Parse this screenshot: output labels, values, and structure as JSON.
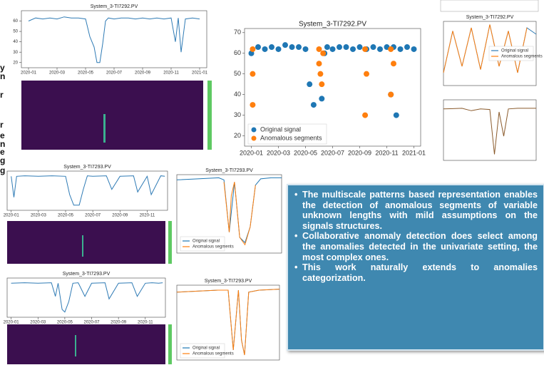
{
  "left_fragments": [
    "y",
    "n",
    "r",
    "r",
    "e",
    "n",
    "e",
    "g",
    "g"
  ],
  "bullets": [
    "The multiscale patterns based representation enables the detection of anomalous segments of variable unknown lengths with mild assumptions on the signals structures.",
    "Collaborative anomaly detection does select among the anomalies detected in the univariate setting, the most complex ones.",
    "This work naturally extends to anomalies categorization."
  ],
  "chart_data": [
    {
      "type": "line",
      "title": "System_3-TI7292.PV",
      "xlim": [
        -0.5,
        12.5
      ],
      "ylim": [
        15,
        70
      ],
      "xticks": [
        {
          "value": 0,
          "label": "2020-01"
        },
        {
          "value": 2,
          "label": "2020-03"
        },
        {
          "value": 4,
          "label": "2020-05"
        },
        {
          "value": 6,
          "label": "2020-07"
        },
        {
          "value": 8,
          "label": "2020-09"
        },
        {
          "value": 10,
          "label": "2020-11"
        },
        {
          "value": 12,
          "label": "2021-01"
        }
      ],
      "yticks": [
        20,
        30,
        40,
        50,
        60
      ],
      "series": [
        {
          "color": "#2f7bb5",
          "x": [
            0,
            0.5,
            1,
            1.5,
            2,
            2.5,
            3,
            3.5,
            4,
            4.3,
            4.6,
            4.8,
            5,
            5.2,
            5.4,
            5.6,
            6,
            6.5,
            7,
            7.5,
            8,
            8.5,
            9,
            9.5,
            10,
            10.3,
            10.5,
            10.7,
            11,
            11.5,
            12
          ],
          "values": [
            60,
            63,
            62,
            63,
            62,
            64,
            63,
            63,
            62,
            45,
            35,
            20,
            20,
            38,
            60,
            63,
            62,
            63,
            63,
            62,
            63,
            62,
            63,
            62,
            63,
            40,
            63,
            30,
            62,
            63,
            62
          ]
        }
      ]
    },
    {
      "type": "scatter",
      "title": "System_3-TI7292.PV",
      "xlim": [
        -0.5,
        12.5
      ],
      "ylim": [
        15,
        72
      ],
      "legend": "lower-left",
      "xticks": [
        {
          "value": 0,
          "label": "2020-01"
        },
        {
          "value": 2,
          "label": "2020-03"
        },
        {
          "value": 4,
          "label": "2020-05"
        },
        {
          "value": 6,
          "label": "2020-07"
        },
        {
          "value": 8,
          "label": "2020-09"
        },
        {
          "value": 10,
          "label": "2020-11"
        },
        {
          "value": 12,
          "label": "2021-01"
        }
      ],
      "yticks": [
        20,
        30,
        40,
        50,
        60,
        70
      ],
      "series": [
        {
          "name": "Original signal",
          "color": "#1f77b4",
          "x": [
            0,
            0.5,
            1,
            1.5,
            2,
            2.5,
            3,
            3.5,
            4,
            4.3,
            4.6,
            4.8,
            5,
            5.2,
            5.4,
            5.6,
            6,
            6.5,
            7,
            7.5,
            8,
            8.5,
            9,
            9.5,
            10,
            10.3,
            10.5,
            10.7,
            11,
            11.5,
            12
          ],
          "values": [
            60,
            63,
            62,
            63,
            62,
            64,
            63,
            63,
            62,
            45,
            35,
            20,
            20,
            38,
            60,
            63,
            62,
            63,
            63,
            62,
            63,
            62,
            63,
            62,
            63,
            40,
            63,
            30,
            62,
            63,
            62
          ]
        },
        {
          "name": "Anomalous segments",
          "color": "#ff7f0e",
          "x": [
            0.1,
            0.1,
            0.1,
            5,
            5,
            5.1,
            5.2,
            5.3,
            8.4,
            8.4,
            8.5,
            10.3,
            10.3,
            10.5
          ],
          "values": [
            35,
            50,
            62,
            62,
            55,
            50,
            45,
            60,
            62,
            30,
            50,
            40,
            62,
            55
          ]
        }
      ]
    },
    {
      "type": "line",
      "title": "System_3-TI7293.PV",
      "xlim": [
        -0.3,
        11.5
      ],
      "ylim": [
        20,
        95
      ],
      "xticks": [
        {
          "value": 0,
          "label": "2020-01"
        },
        {
          "value": 2,
          "label": "2020-03"
        },
        {
          "value": 4,
          "label": "2020-05"
        },
        {
          "value": 6,
          "label": "2020-07"
        },
        {
          "value": 8,
          "label": "2020-09"
        },
        {
          "value": 10,
          "label": "2020-11"
        }
      ],
      "series": [
        {
          "color": "#2f7bb5",
          "x": [
            0,
            0.2,
            0.4,
            1,
            2,
            3,
            4,
            4.3,
            4.6,
            5,
            5.3,
            5.6,
            6,
            7,
            7.4,
            8,
            9,
            9.3,
            10,
            10.3,
            11,
            11.3
          ],
          "values": [
            85,
            45,
            85,
            86,
            85,
            86,
            85,
            50,
            30,
            30,
            60,
            86,
            85,
            86,
            60,
            85,
            86,
            55,
            85,
            50,
            86,
            85
          ]
        }
      ]
    },
    {
      "type": "line",
      "title": "System_3-TI7293.PV",
      "xlim": [
        0,
        10
      ],
      "ylim": [
        20,
        95
      ],
      "legend": "lower-left",
      "series": [
        {
          "name": "Original signal",
          "color": "#1f77b4",
          "x": [
            0,
            2,
            4,
            4.5,
            5,
            5.5,
            6,
            6.5,
            7,
            7.5,
            8,
            9,
            10
          ],
          "values": [
            90,
            91,
            92,
            90,
            40,
            88,
            35,
            30,
            45,
            85,
            91,
            92,
            92
          ]
        },
        {
          "name": "Anomalous segments",
          "color": "#ff7f0e",
          "x": [
            4.5,
            5,
            5.2,
            5.5,
            6,
            6.5,
            7,
            7.5
          ],
          "values": [
            88,
            40,
            75,
            88,
            35,
            28,
            45,
            85
          ]
        }
      ]
    },
    {
      "type": "line",
      "title": "System_3-TI7293.PV",
      "xlim": [
        -0.3,
        11.5
      ],
      "ylim": [
        20,
        95
      ],
      "xticks": [
        {
          "value": 0,
          "label": "2020-01"
        },
        {
          "value": 2,
          "label": "2020-03"
        },
        {
          "value": 4,
          "label": "2020-05"
        },
        {
          "value": 6,
          "label": "2020-07"
        },
        {
          "value": 8,
          "label": "2020-09"
        },
        {
          "value": 10,
          "label": "2020-11"
        }
      ],
      "series": [
        {
          "color": "#2f7bb5",
          "x": [
            0,
            1,
            2,
            3,
            3.3,
            3.5,
            3.8,
            4,
            4.3,
            4.6,
            5,
            5.5,
            6,
            7,
            7.3,
            8,
            9,
            9.4,
            10,
            10.5,
            11,
            11.3
          ],
          "values": [
            85,
            86,
            85,
            86,
            60,
            85,
            35,
            30,
            50,
            85,
            86,
            60,
            85,
            86,
            55,
            85,
            86,
            60,
            85,
            86,
            85,
            86
          ]
        }
      ]
    },
    {
      "type": "line",
      "title": "System_3-TI7293.PV",
      "xlim": [
        0,
        10
      ],
      "ylim": [
        20,
        95
      ],
      "legend": "lower-left",
      "series": [
        {
          "name": "Original signal",
          "color": "#1f77b4",
          "x": [
            0,
            2,
            4,
            5,
            5.5,
            6,
            6.3,
            6.6,
            7,
            8,
            10
          ],
          "values": [
            88,
            89,
            90,
            90,
            30,
            90,
            40,
            25,
            88,
            90,
            91
          ]
        },
        {
          "name": "Anomalous segments",
          "color": "#ff7f0e",
          "x": [
            0,
            2,
            4,
            5,
            5.5,
            6,
            6.3,
            6.6,
            7,
            8,
            10
          ],
          "values": [
            88,
            89,
            90,
            90,
            30,
            90,
            40,
            25,
            88,
            90,
            91
          ]
        }
      ]
    },
    {
      "type": "line",
      "title": "System_3-TI7292.PV",
      "xlim": [
        0,
        10
      ],
      "ylim": [
        0,
        100
      ],
      "legend": "center-right",
      "series": [
        {
          "name": "Original signal",
          "color": "#2f7bb5",
          "x": [
            0,
            1,
            2,
            3,
            4,
            5,
            6,
            7,
            8,
            9,
            10
          ],
          "values": [
            20,
            85,
            30,
            90,
            25,
            95,
            30,
            85,
            20,
            90,
            80
          ]
        },
        {
          "name": "Anomalous segments",
          "color": "#ff7f0e",
          "x": [
            0,
            1,
            2,
            3,
            4,
            5,
            6,
            7,
            8,
            9
          ],
          "values": [
            20,
            85,
            30,
            90,
            25,
            95,
            30,
            85,
            20,
            90
          ]
        }
      ]
    },
    {
      "type": "line",
      "xlim": [
        0,
        10
      ],
      "ylim": [
        0,
        100
      ],
      "series": [
        {
          "color": "#8a5a2b",
          "x": [
            0,
            2,
            3,
            4,
            5,
            5.5,
            6,
            6.5,
            7,
            8,
            10
          ],
          "values": [
            85,
            86,
            82,
            85,
            84,
            10,
            80,
            40,
            85,
            86,
            86
          ]
        }
      ]
    }
  ]
}
